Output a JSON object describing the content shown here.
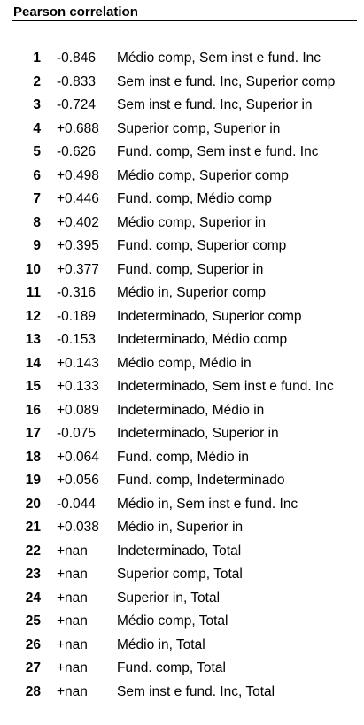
{
  "title": "Pearson correlation",
  "rows": [
    {
      "rank": "1",
      "value": "-0.846",
      "pair": "Médio comp, Sem inst e fund. Inc"
    },
    {
      "rank": "2",
      "value": "-0.833",
      "pair": "Sem inst e fund. Inc, Superior comp"
    },
    {
      "rank": "3",
      "value": "-0.724",
      "pair": "Sem inst e fund. Inc, Superior in"
    },
    {
      "rank": "4",
      "value": "+0.688",
      "pair": "Superior comp, Superior in"
    },
    {
      "rank": "5",
      "value": "-0.626",
      "pair": "Fund. comp, Sem inst e fund. Inc"
    },
    {
      "rank": "6",
      "value": "+0.498",
      "pair": "Médio comp, Superior comp"
    },
    {
      "rank": "7",
      "value": "+0.446",
      "pair": "Fund. comp, Médio comp"
    },
    {
      "rank": "8",
      "value": "+0.402",
      "pair": "Médio comp, Superior in"
    },
    {
      "rank": "9",
      "value": "+0.395",
      "pair": "Fund. comp, Superior comp"
    },
    {
      "rank": "10",
      "value": "+0.377",
      "pair": "Fund. comp, Superior in"
    },
    {
      "rank": "11",
      "value": "-0.316",
      "pair": "Médio in, Superior comp"
    },
    {
      "rank": "12",
      "value": "-0.189",
      "pair": "Indeterminado, Superior comp"
    },
    {
      "rank": "13",
      "value": "-0.153",
      "pair": "Indeterminado, Médio comp"
    },
    {
      "rank": "14",
      "value": "+0.143",
      "pair": "Médio comp, Médio in"
    },
    {
      "rank": "15",
      "value": "+0.133",
      "pair": "Indeterminado, Sem inst e fund. Inc"
    },
    {
      "rank": "16",
      "value": "+0.089",
      "pair": "Indeterminado, Médio in"
    },
    {
      "rank": "17",
      "value": "-0.075",
      "pair": "Indeterminado, Superior in"
    },
    {
      "rank": "18",
      "value": "+0.064",
      "pair": "Fund. comp, Médio in"
    },
    {
      "rank": "19",
      "value": "+0.056",
      "pair": "Fund. comp, Indeterminado"
    },
    {
      "rank": "20",
      "value": "-0.044",
      "pair": "Médio in, Sem inst e fund. Inc"
    },
    {
      "rank": "21",
      "value": "+0.038",
      "pair": "Médio in, Superior in"
    },
    {
      "rank": "22",
      "value": "+nan",
      "pair": "Indeterminado, Total"
    },
    {
      "rank": "23",
      "value": "+nan",
      "pair": "Superior comp, Total"
    },
    {
      "rank": "24",
      "value": "+nan",
      "pair": "Superior in, Total"
    },
    {
      "rank": "25",
      "value": "+nan",
      "pair": "Médio comp, Total"
    },
    {
      "rank": "26",
      "value": "+nan",
      "pair": "Médio in, Total"
    },
    {
      "rank": "27",
      "value": "+nan",
      "pair": "Fund. comp, Total"
    },
    {
      "rank": "28",
      "value": "+nan",
      "pair": "Sem inst e fund. Inc, Total"
    }
  ]
}
